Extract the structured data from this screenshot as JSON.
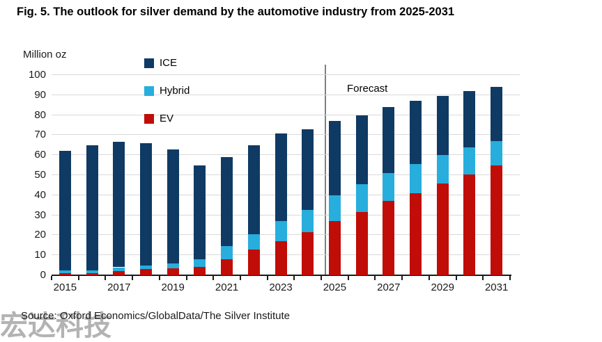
{
  "title": "Fig. 5. The outlook for silver demand by the automotive industry from 2025-2031",
  "source": "Source: Oxford Economics/GlobalData/The Silver Institute",
  "watermark": "宏达科技",
  "chart_data": {
    "type": "bar",
    "stacked": true,
    "title": "Fig. 5. The outlook for silver demand by the automotive industry from 2025-2031",
    "ylabel": "Million oz",
    "xlabel": "",
    "ylim": [
      0,
      100
    ],
    "ytick_step": 10,
    "grid": "horizontal",
    "legend_position": "top-left-vertical",
    "categories": [
      "2015",
      "2016",
      "2017",
      "2018",
      "2019",
      "2020",
      "2021",
      "2022",
      "2023",
      "2024",
      "2025",
      "2026",
      "2027",
      "2028",
      "2029",
      "2030",
      "2031"
    ],
    "xtick_labels": [
      "2015",
      "2017",
      "2019",
      "2021",
      "2023",
      "2025",
      "2027",
      "2029",
      "2031"
    ],
    "series": [
      {
        "name": "ICE",
        "color": "#0f3a64",
        "values": [
          59.5,
          62.5,
          62.5,
          61,
          57,
          47,
          44.5,
          44.5,
          44,
          40.5,
          37,
          34.5,
          33,
          31.5,
          29.5,
          28,
          27
        ]
      },
      {
        "name": "Hybrid",
        "color": "#27aedd",
        "values": [
          1.5,
          1.5,
          2,
          2,
          2.5,
          4,
          6.5,
          7.5,
          10,
          11,
          13,
          14,
          14,
          14.5,
          14,
          13.5,
          12
        ]
      },
      {
        "name": "EV",
        "color": "#c00d07",
        "values": [
          1,
          1,
          2,
          3,
          3.5,
          4,
          8,
          13,
          17,
          21.5,
          27,
          31.5,
          37,
          41,
          46,
          50.5,
          55
        ]
      }
    ],
    "stack_order_bottom_to_top": [
      "EV",
      "Hybrid",
      "ICE"
    ],
    "totals": [
      62,
      65,
      66.5,
      66,
      63,
      55,
      59,
      65,
      71,
      73,
      77,
      80,
      84,
      87,
      89.5,
      92,
      94
    ],
    "forecast": {
      "label": "Forecast",
      "divider_between": [
        "2024",
        "2025"
      ]
    }
  },
  "style_colors": {
    "gridline": "#d9d9d9",
    "axis": "#1a1a1a",
    "divider": "#808080",
    "watermark_gray": "#b3b3b3"
  }
}
